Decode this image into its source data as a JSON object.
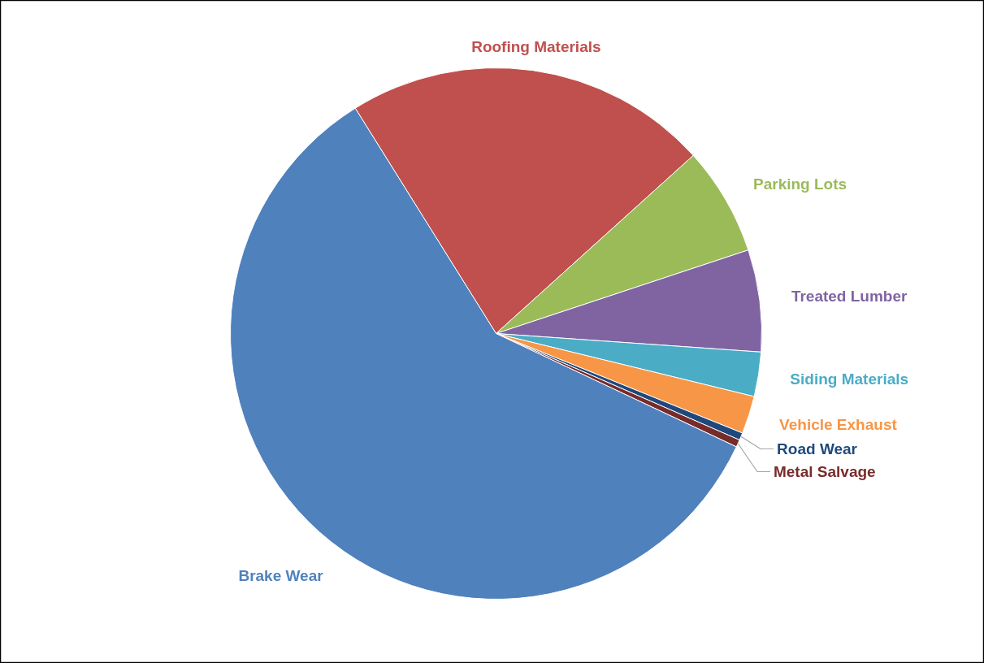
{
  "chart_data": {
    "type": "pie",
    "categories": [
      "Roofing Materials",
      "Parking Lots",
      "Treated Lumber",
      "Siding Materials",
      "Vehicle Exhaust",
      "Road Wear",
      "Metal Salvage",
      "Brake Wear"
    ],
    "values": [
      22.2,
      6.6,
      6.2,
      2.7,
      2.3,
      0.45,
      0.45,
      59.1
    ],
    "colors": [
      "#c0504d",
      "#9bbb59",
      "#8064a2",
      "#4bacc6",
      "#f79646",
      "#1f497d",
      "#772c2a",
      "#4f81bd"
    ]
  }
}
